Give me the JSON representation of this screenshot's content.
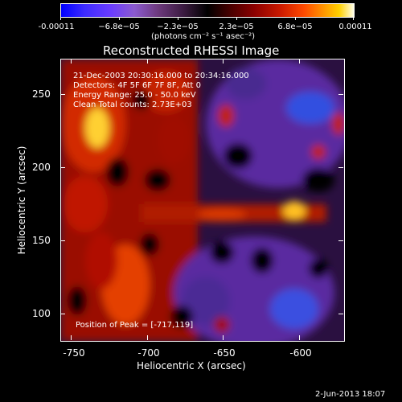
{
  "colorbar": {
    "ticks": [
      "-0.00011",
      "−6.8e−05",
      "−2.3e−05",
      "2.3e−05",
      "6.8e−05",
      "0.00011"
    ],
    "units": "(photons cm⁻² s⁻¹ asec⁻²)"
  },
  "title": "Reconstructed RHESSI Image",
  "info": {
    "line1": "21-Dec-2003 20:30:16.000 to 20:34:16.000",
    "line2": "Detectors: 4F 5F 6F 7F 8F, Att 0",
    "line3": "Energy Range: 25.0 - 50.0 keV",
    "line4": "Clean     Total counts: 2.73E+03",
    "peak": "Position of Peak = [-717,119]"
  },
  "axes": {
    "xlabel": "Heliocentric X (arcsec)",
    "ylabel": "Heliocentric Y (arcsec)",
    "xticks": [
      "-750",
      "-700",
      "-650",
      "-600"
    ],
    "yticks": [
      "250",
      "200",
      "150",
      "100"
    ]
  },
  "footer": {
    "date": "2-Jun-2013 18:07"
  },
  "colors": {
    "background": "#000000",
    "foreground": "#ffffff"
  }
}
